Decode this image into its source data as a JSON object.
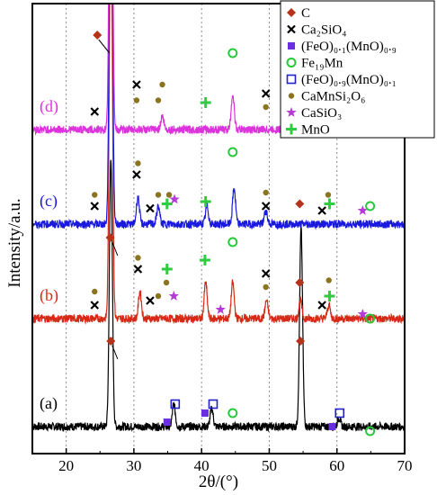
{
  "chart_data": {
    "type": "line",
    "title": "",
    "xlabel": "2θ/(°)",
    "ylabel": "Intensity/a.u.",
    "xlim": [
      15,
      70
    ],
    "xticks": [
      20,
      30,
      40,
      50,
      60,
      70
    ],
    "xtick_labels": [
      "20",
      "30",
      "40",
      "50",
      "60",
      "70"
    ],
    "grid": "vertical-dotted",
    "legend_position": "top-right",
    "series": [
      {
        "name": "(a)",
        "color": "#000000",
        "baseline": 6,
        "peaks": [
          [
            26.6,
            60
          ],
          [
            35.9,
            5
          ],
          [
            41.5,
            4
          ],
          [
            54.7,
            44
          ],
          [
            60.3,
            2
          ]
        ]
      },
      {
        "name": "(b)",
        "color": "#d62a17",
        "baseline": 30,
        "peaks": [
          [
            26.6,
            100
          ],
          [
            30.9,
            6
          ],
          [
            40.6,
            8
          ],
          [
            44.6,
            8
          ],
          [
            49.6,
            4
          ],
          [
            54.6,
            4
          ],
          [
            58.8,
            3
          ]
        ]
      },
      {
        "name": "(c)",
        "color": "#1a1adf",
        "baseline": 51,
        "peaks": [
          [
            26.6,
            100
          ],
          [
            30.6,
            6
          ],
          [
            33.6,
            4
          ],
          [
            40.8,
            4
          ],
          [
            44.8,
            8
          ],
          [
            49.5,
            3
          ]
        ]
      },
      {
        "name": "(d)",
        "color": "#dd33dd",
        "baseline": 72,
        "peaks": [
          [
            26.6,
            100
          ],
          [
            34.2,
            3
          ],
          [
            44.6,
            8
          ],
          [
            54.6,
            3
          ]
        ]
      }
    ],
    "legend": [
      {
        "marker": "diamond",
        "label": "C",
        "color": "#b5321b"
      },
      {
        "marker": "cross",
        "label": "Ca₂SiO₄",
        "color": "#000000"
      },
      {
        "marker": "filled-square",
        "label": "(FeO)₀.₁(MnO)₀.₉",
        "color": "#6b2ee0"
      },
      {
        "marker": "open-circle",
        "label": "Fe₁₉Mn",
        "color": "#27c93a"
      },
      {
        "marker": "open-square",
        "label": "(FeO)₀.₉(MnO)₀.₁",
        "color": "#2222cc"
      },
      {
        "marker": "dot",
        "label": "CaMnSi₂O₆",
        "color": "#8a7420"
      },
      {
        "marker": "star",
        "label": "CaSiO₃",
        "color": "#b53ad6"
      },
      {
        "marker": "plus",
        "label": "MnO",
        "color": "#2ecc40"
      }
    ],
    "phase_markers": [
      {
        "curve": "(a)",
        "marker": "diamond",
        "x": 26.6,
        "level": 25
      },
      {
        "curve": "(a)",
        "marker": "diamond",
        "x": 54.6,
        "level": 25
      },
      {
        "curve": "(a)",
        "marker": "filled-square",
        "x": 34.9,
        "level": 7
      },
      {
        "curve": "(a)",
        "marker": "open-square",
        "x": 36.1,
        "level": 11
      },
      {
        "curve": "(a)",
        "marker": "filled-square",
        "x": 40.5,
        "level": 9
      },
      {
        "curve": "(a)",
        "marker": "open-square",
        "x": 41.7,
        "level": 11
      },
      {
        "curve": "(a)",
        "marker": "open-circle",
        "x": 44.6,
        "level": 9
      },
      {
        "curve": "(a)",
        "marker": "filled-square",
        "x": 59.3,
        "level": 6
      },
      {
        "curve": "(a)",
        "marker": "open-square",
        "x": 60.4,
        "level": 9
      },
      {
        "curve": "(a)",
        "marker": "open-circle",
        "x": 64.9,
        "level": 5
      },
      {
        "curve": "(b)",
        "marker": "diamond",
        "x": 26.5,
        "level": 48
      },
      {
        "curve": "(b)",
        "marker": "diamond",
        "x": 54.5,
        "level": 38
      },
      {
        "curve": "(b)",
        "marker": "cross",
        "x": 24.2,
        "level": 33
      },
      {
        "curve": "(b)",
        "marker": "dot",
        "x": 24.2,
        "level": 36
      },
      {
        "curve": "(b)",
        "marker": "cross",
        "x": 30.6,
        "level": 41
      },
      {
        "curve": "(b)",
        "marker": "dot",
        "x": 30.6,
        "level": 43.5
      },
      {
        "curve": "(b)",
        "marker": "cross",
        "x": 32.4,
        "level": 34
      },
      {
        "curve": "(b)",
        "marker": "dot",
        "x": 33.6,
        "level": 35
      },
      {
        "curve": "(b)",
        "marker": "plus",
        "x": 34.9,
        "level": 41
      },
      {
        "curve": "(b)",
        "marker": "star",
        "x": 35.9,
        "level": 35
      },
      {
        "curve": "(b)",
        "marker": "dot",
        "x": 34.8,
        "level": 38
      },
      {
        "curve": "(b)",
        "marker": "plus",
        "x": 40.5,
        "level": 43
      },
      {
        "curve": "(b)",
        "marker": "open-circle",
        "x": 44.6,
        "level": 47
      },
      {
        "curve": "(b)",
        "marker": "star",
        "x": 42.8,
        "level": 32
      },
      {
        "curve": "(b)",
        "marker": "cross",
        "x": 49.5,
        "level": 40
      },
      {
        "curve": "(b)",
        "marker": "dot",
        "x": 49.5,
        "level": 37
      },
      {
        "curve": "(b)",
        "marker": "cross",
        "x": 57.8,
        "level": 33
      },
      {
        "curve": "(b)",
        "marker": "dot",
        "x": 58.8,
        "level": 38.5
      },
      {
        "curve": "(b)",
        "marker": "plus",
        "x": 58.9,
        "level": 35
      },
      {
        "curve": "(b)",
        "marker": "star",
        "x": 63.8,
        "level": 31
      },
      {
        "curve": "(b)",
        "marker": "open-circle",
        "x": 64.9,
        "level": 30
      },
      {
        "curve": "(c)",
        "marker": "cross",
        "x": 24.2,
        "level": 55
      },
      {
        "curve": "(c)",
        "marker": "dot",
        "x": 24.2,
        "level": 57.5
      },
      {
        "curve": "(c)",
        "marker": "cross",
        "x": 30.4,
        "level": 62
      },
      {
        "curve": "(c)",
        "marker": "dot",
        "x": 30.6,
        "level": 64.5
      },
      {
        "curve": "(c)",
        "marker": "cross",
        "x": 32.4,
        "level": 54.5
      },
      {
        "curve": "(c)",
        "marker": "dot",
        "x": 33.6,
        "level": 57.5
      },
      {
        "curve": "(c)",
        "marker": "plus",
        "x": 34.9,
        "level": 55.5
      },
      {
        "curve": "(c)",
        "marker": "dot",
        "x": 35.2,
        "level": 57.5
      },
      {
        "curve": "(c)",
        "marker": "star",
        "x": 36.0,
        "level": 56.5
      },
      {
        "curve": "(c)",
        "marker": "plus",
        "x": 40.6,
        "level": 56
      },
      {
        "curve": "(c)",
        "marker": "open-circle",
        "x": 44.6,
        "level": 67
      },
      {
        "curve": "(c)",
        "marker": "cross",
        "x": 49.5,
        "level": 55
      },
      {
        "curve": "(c)",
        "marker": "dot",
        "x": 49.5,
        "level": 58
      },
      {
        "curve": "(c)",
        "marker": "diamond",
        "x": 54.5,
        "level": 55.5
      },
      {
        "curve": "(c)",
        "marker": "cross",
        "x": 57.8,
        "level": 54
      },
      {
        "curve": "(c)",
        "marker": "plus",
        "x": 58.9,
        "level": 55.5
      },
      {
        "curve": "(c)",
        "marker": "dot",
        "x": 58.7,
        "level": 57.5
      },
      {
        "curve": "(c)",
        "marker": "star",
        "x": 63.8,
        "level": 54
      },
      {
        "curve": "(c)",
        "marker": "open-circle",
        "x": 64.9,
        "level": 55
      },
      {
        "curve": "(d)",
        "marker": "diamond",
        "x": 24.6,
        "level": 93
      },
      {
        "curve": "(d)",
        "marker": "cross",
        "x": 24.2,
        "level": 76
      },
      {
        "curve": "(d)",
        "marker": "cross",
        "x": 30.4,
        "level": 82
      },
      {
        "curve": "(d)",
        "marker": "dot",
        "x": 30.4,
        "level": 78.5
      },
      {
        "curve": "(d)",
        "marker": "dot",
        "x": 33.6,
        "level": 78.5
      },
      {
        "curve": "(d)",
        "marker": "dot",
        "x": 34.2,
        "level": 82
      },
      {
        "curve": "(d)",
        "marker": "plus",
        "x": 40.6,
        "level": 78
      },
      {
        "curve": "(d)",
        "marker": "open-circle",
        "x": 44.6,
        "level": 89
      },
      {
        "curve": "(d)",
        "marker": "cross",
        "x": 49.5,
        "level": 80
      },
      {
        "curve": "(d)",
        "marker": "dot",
        "x": 49.5,
        "level": 77
      },
      {
        "curve": "(d)",
        "marker": "diamond",
        "x": 54.5,
        "level": 81
      },
      {
        "curve": "(d)",
        "marker": "cross",
        "x": 57.8,
        "level": 75
      },
      {
        "curve": "(d)",
        "marker": "open-circle",
        "x": 64.9,
        "level": 75
      }
    ]
  }
}
